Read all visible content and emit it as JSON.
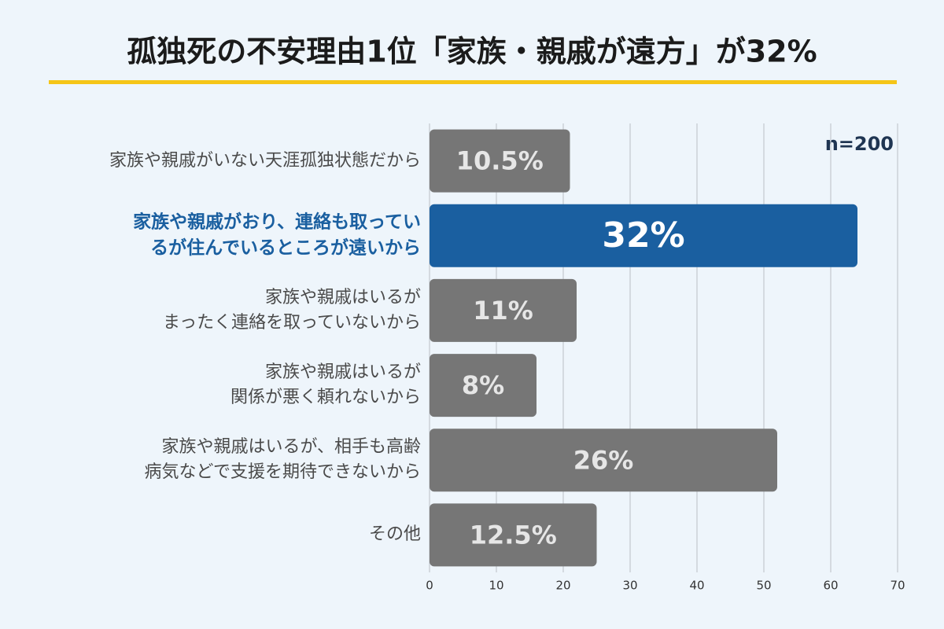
{
  "chart_data": {
    "type": "bar",
    "orientation": "horizontal",
    "title": "孤独死の不安理由1位「家族・親戚が遠方」が32%",
    "annotation": "n=200",
    "categories": [
      "家族や親戚がいない天涯孤独状態だから",
      "家族や親戚がおり、連絡も取ってい\nるが住んでいるところが遠いから",
      "家族や親戚はいるが\nまったく連絡を取っていないから",
      "家族や親戚はいるが\n関係が悪く頼れないから",
      "家族や親戚はいるが、相手も高齢\n病気などで支援を期待できないから",
      "その他"
    ],
    "values": [
      21,
      64,
      22,
      16,
      52,
      25
    ],
    "value_labels": [
      "10.5%",
      "32%",
      "11%",
      "8%",
      "26%",
      "12.5%"
    ],
    "colors": [
      "#767676",
      "#1a5fa0",
      "#767676",
      "#767676",
      "#767676",
      "#767676"
    ],
    "highlight": 1,
    "xlim": [
      0,
      70
    ],
    "xticks": [
      0,
      10,
      20,
      30,
      40,
      50,
      60,
      70
    ],
    "grid": true
  }
}
